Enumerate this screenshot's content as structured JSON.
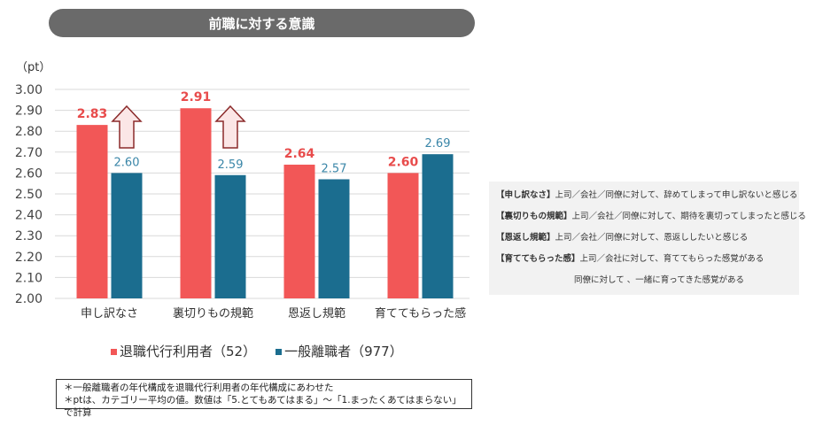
{
  "title": "前職に対する意識",
  "chart_data": {
    "type": "bar",
    "ylabel": "（pt）",
    "ylim": [
      2.0,
      3.0
    ],
    "yticks": [
      "2.00",
      "2.10",
      "2.20",
      "2.30",
      "2.40",
      "2.50",
      "2.60",
      "2.70",
      "2.80",
      "2.90",
      "3.00"
    ],
    "grid": true,
    "legend_position": "bottom",
    "categories": [
      "申し訳なさ",
      "裏切りもの規範",
      "恩返し規範",
      "育ててもらった感"
    ],
    "series": [
      {
        "name": "退職代行利用者(52)",
        "values": [
          2.83,
          2.91,
          2.64,
          2.6
        ],
        "labels": [
          "2.83",
          "2.91",
          "2.64",
          "2.60"
        ],
        "color": "#f25757"
      },
      {
        "name": "一般離職者(977)",
        "values": [
          2.6,
          2.59,
          2.57,
          2.69
        ],
        "labels": [
          "2.60",
          "2.59",
          "2.57",
          "2.69"
        ],
        "color": "#1b6d8f"
      }
    ],
    "annotations": [
      {
        "type": "up-arrow",
        "category": "申し訳なさ"
      },
      {
        "type": "up-arrow",
        "category": "裏切りもの規範"
      }
    ]
  },
  "legend": {
    "items": [
      {
        "label": "退職代行利用者（52）",
        "color": "#f25757"
      },
      {
        "label": "一般離職者（977）",
        "color": "#1b6d8f"
      }
    ]
  },
  "notes": [
    "＊一般離職者の年代構成を退職代行利用者の年代構成にあわせた",
    "＊ptは、カテゴリー平均の値。数値は「5.とてもあてはまる」〜「1.まったくあてはまらない」で計算"
  ],
  "definitions": [
    {
      "term": "【申し訳なさ】",
      "text": "上司／会社／同僚に対して、辞めてしまって申し訳ないと感じる"
    },
    {
      "term": "【裏切りもの規範】",
      "text": "上司／会社／同僚に対して、期待を裏切ってしまったと感じる"
    },
    {
      "term": "【恩返し規範】",
      "text": "上司／会社／同僚に対して、恩返ししたいと感じる"
    },
    {
      "term": "【育ててもらった感】",
      "text": "上司／会社に対して、育ててもらった感覚がある"
    },
    {
      "term": "",
      "text": "同僚に対して 、一緒に育ってきた感覚がある"
    }
  ]
}
